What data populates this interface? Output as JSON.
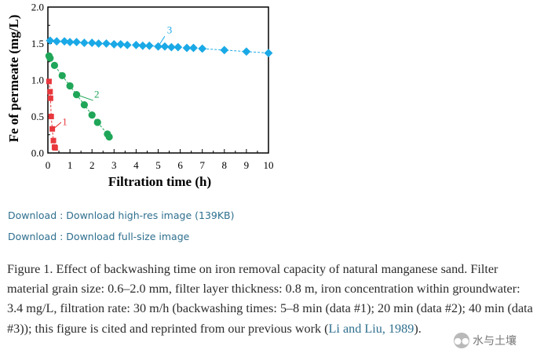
{
  "chart_data": {
    "type": "scatter",
    "xlabel": "Filtration time (h)",
    "ylabel": "Fe of permeate (mg/L)",
    "xlim": [
      0,
      10
    ],
    "ylim": [
      0,
      2.0
    ],
    "x_ticks": [
      "0",
      "1",
      "2",
      "3",
      "4",
      "5",
      "6",
      "7",
      "8",
      "9",
      "10"
    ],
    "y_ticks": [
      "0.0",
      "0.5",
      "1.0",
      "1.5",
      "2.0"
    ],
    "grid": false,
    "series": [
      {
        "name": "1",
        "color": "#e8383d",
        "marker": "square",
        "x": [
          0.05,
          0.1,
          0.12,
          0.15,
          0.2,
          0.25,
          0.3,
          0.33
        ],
        "y": [
          0.98,
          0.84,
          0.75,
          0.5,
          0.33,
          0.17,
          0.08,
          0.07
        ]
      },
      {
        "name": "2",
        "color": "#1fa658",
        "marker": "circle",
        "x": [
          0.05,
          0.1,
          0.3,
          0.65,
          1.0,
          1.3,
          1.65,
          2.0,
          2.25,
          2.7,
          2.78
        ],
        "y": [
          1.33,
          1.3,
          1.2,
          1.06,
          0.92,
          0.8,
          0.66,
          0.52,
          0.42,
          0.26,
          0.22
        ]
      },
      {
        "name": "3",
        "color": "#1aa9e6",
        "marker": "diamond",
        "x": [
          0.1,
          0.4,
          0.75,
          1.0,
          1.3,
          1.65,
          2.0,
          2.3,
          2.65,
          3.0,
          3.3,
          3.6,
          4.0,
          4.3,
          4.6,
          5.0,
          5.3,
          5.6,
          5.9,
          6.3,
          6.6,
          7.0,
          8.0,
          9.0,
          10.0
        ],
        "y": [
          1.54,
          1.53,
          1.53,
          1.52,
          1.52,
          1.51,
          1.51,
          1.5,
          1.5,
          1.49,
          1.49,
          1.48,
          1.48,
          1.47,
          1.47,
          1.46,
          1.46,
          1.45,
          1.45,
          1.44,
          1.44,
          1.43,
          1.41,
          1.39,
          1.37
        ]
      }
    ],
    "annotations": [
      {
        "text": "1",
        "series": "1"
      },
      {
        "text": "2",
        "series": "2"
      },
      {
        "text": "3",
        "series": "3"
      }
    ]
  },
  "links": {
    "highres": "Download : Download high-res image (139KB)",
    "fullsize": "Download : Download full-size image"
  },
  "caption": {
    "text": "Figure 1. Effect of backwashing time on iron removal capacity of natural manganese sand. Filter material grain size: 0.6–2.0 mm, filter layer thickness: 0.8 m, iron concentration within groundwater: 3.4 mg/L, filtration rate: 30 m/h (backwashing times: 5–8 min (data #1); 20 min (data #2); 40 min (data #3)); this figure is cited and reprinted from our previous work (",
    "citation": "Li and Liu, 1989",
    "tail": ")."
  },
  "watermark": {
    "icon": "wechat-icon",
    "text": "水与土壤"
  }
}
